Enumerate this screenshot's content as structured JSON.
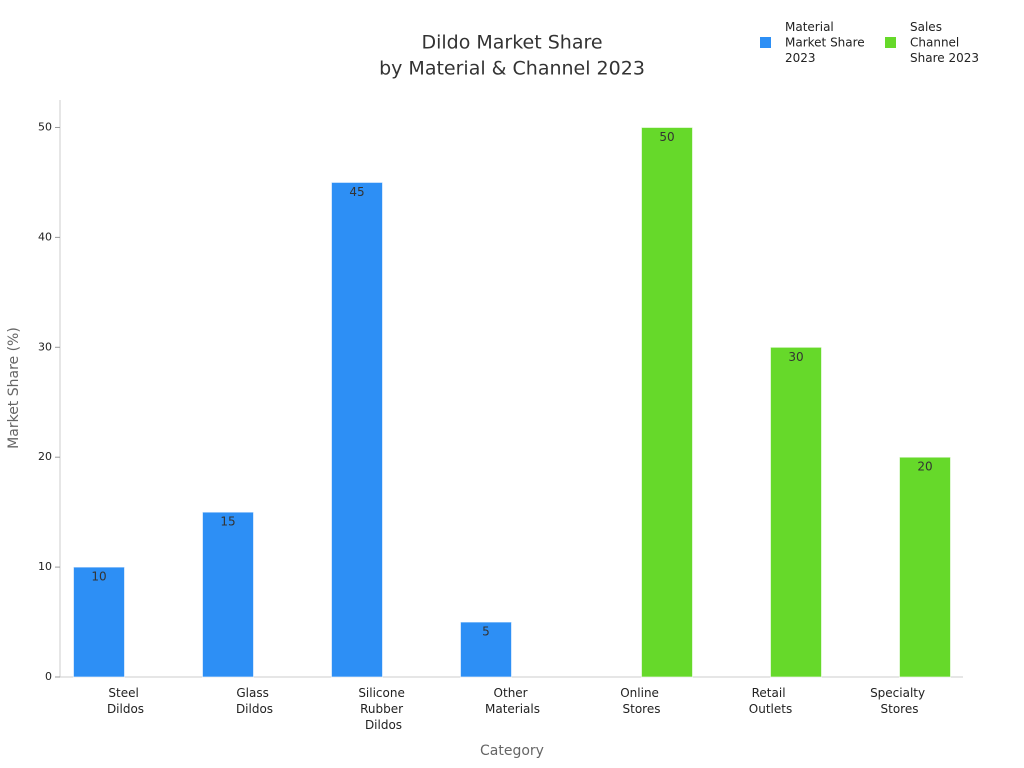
{
  "chart_data": {
    "type": "bar",
    "title": "Dildo Market Share",
    "subtitle": "by Material & Channel 2023",
    "x_label": "Category",
    "y_label": "Market Share (%)",
    "categories": [
      "Steel Dildos",
      "Glass Dildos",
      "Silicone Rubber Dildos",
      "Other Materials",
      "Online Stores",
      "Retail Outlets",
      "Specialty Stores"
    ],
    "series": [
      {
        "name": "Material Market Share 2023",
        "color": "#2d8ff5",
        "values": [
          10,
          15,
          45,
          5,
          null,
          null,
          null
        ]
      },
      {
        "name": "Sales Channel Share 2023",
        "color": "#66d92a",
        "values": [
          null,
          null,
          null,
          null,
          50,
          30,
          20
        ]
      }
    ],
    "ylim": [
      0,
      52.5
    ],
    "yticks": [
      0,
      10,
      20,
      30,
      40,
      50
    ],
    "legend": "top-right",
    "grid": false
  }
}
